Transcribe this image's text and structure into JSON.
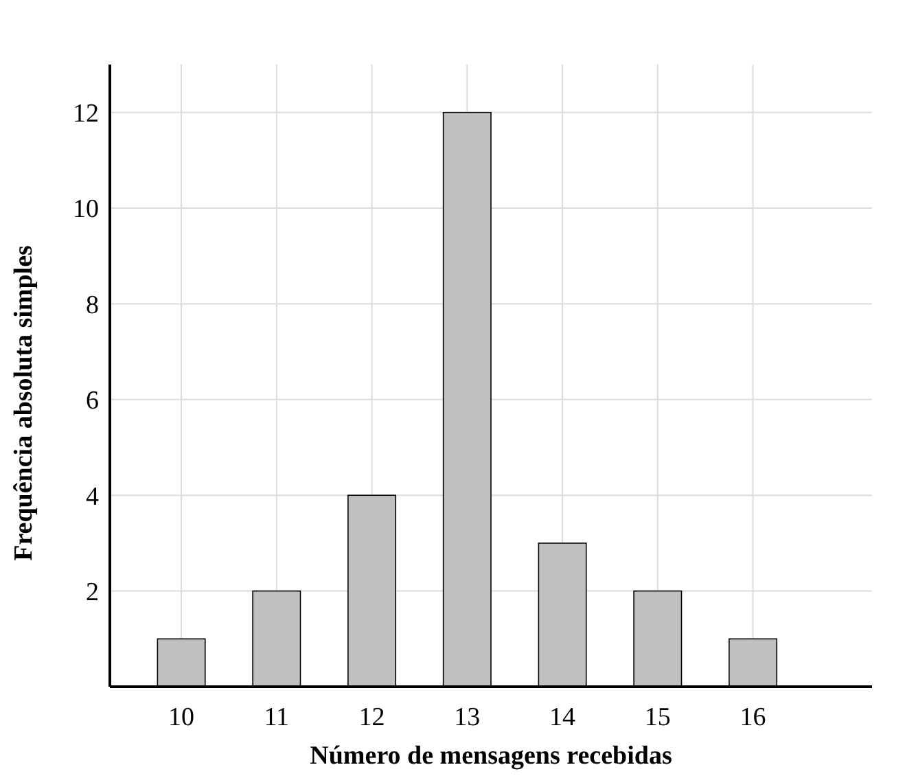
{
  "chart_data": {
    "type": "bar",
    "xlabel": "Número de mensagens recebidas",
    "ylabel": "Frequência absoluta simples",
    "x": [
      10,
      11,
      12,
      13,
      14,
      15,
      16
    ],
    "values": [
      1,
      2,
      4,
      12,
      3,
      2,
      1
    ],
    "color": "#c0c0c0",
    "xlim": [
      9.25,
      17.25
    ],
    "xticks": [
      10,
      11,
      12,
      13,
      14,
      15,
      16
    ],
    "ylim": [
      0,
      13
    ],
    "yticks": [
      2,
      4,
      6,
      8,
      10,
      12
    ],
    "grid": true
  }
}
